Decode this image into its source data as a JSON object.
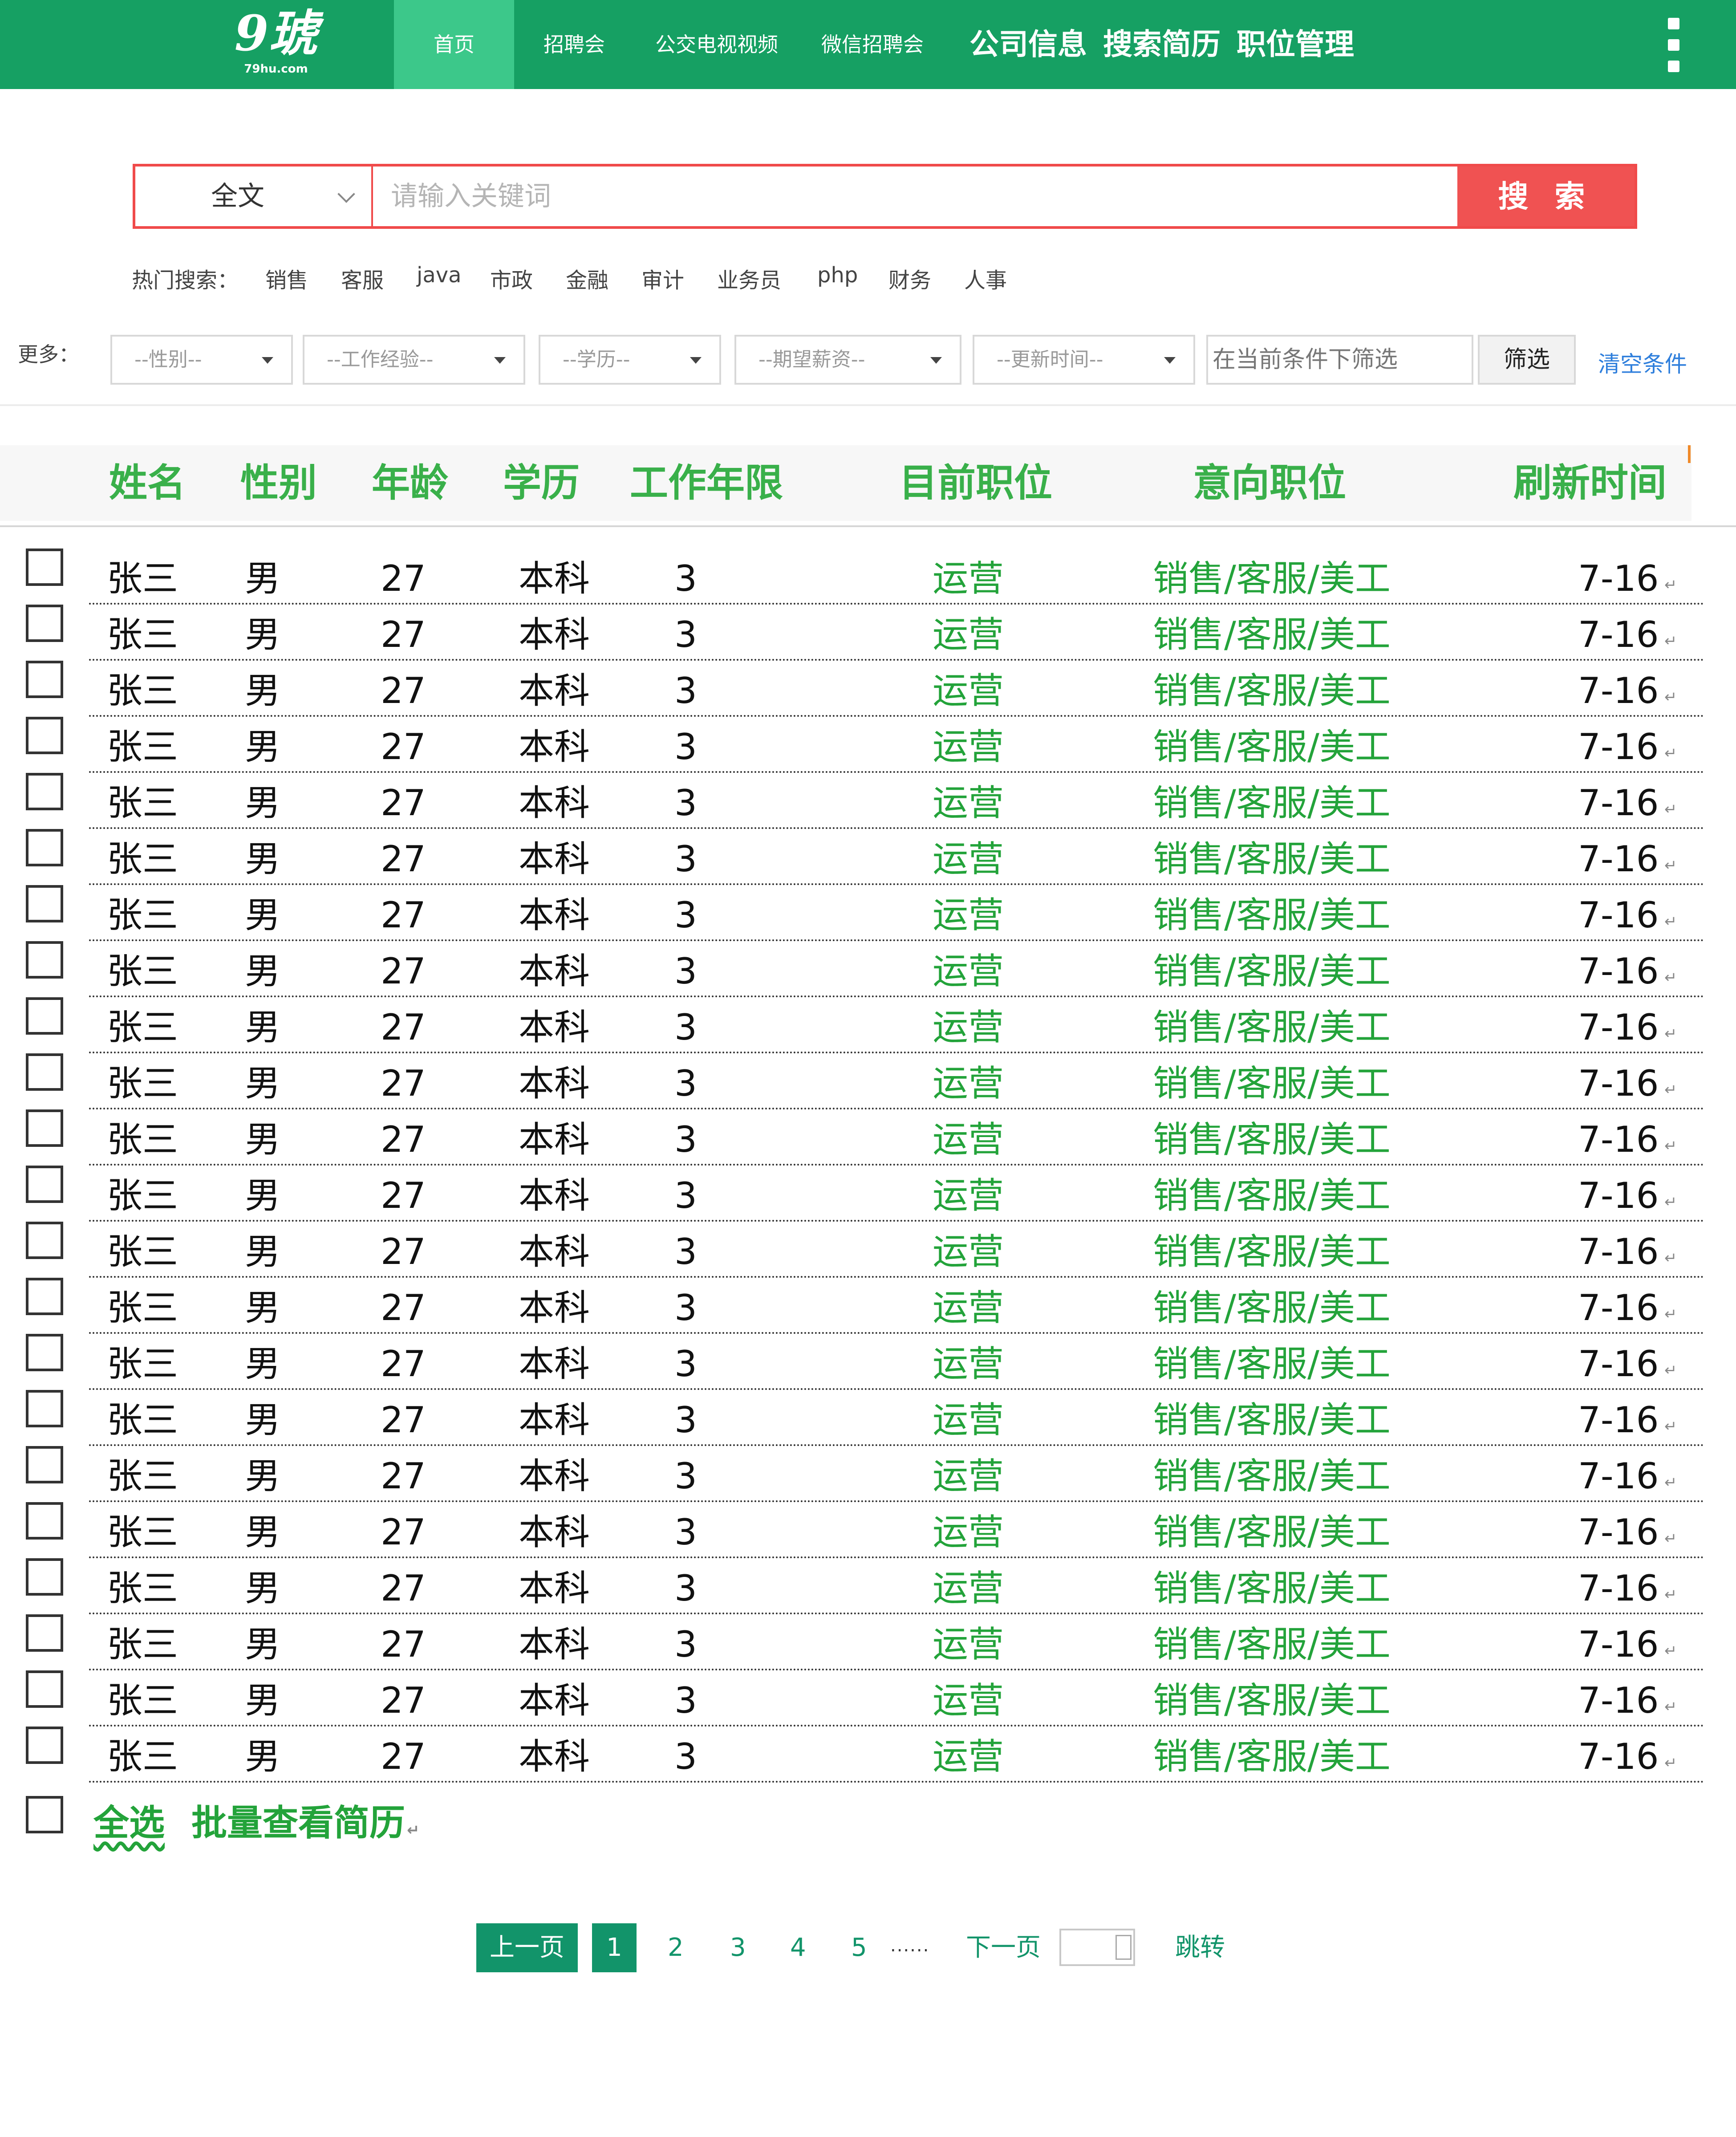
{
  "nav": {
    "logo_main": "9琥",
    "logo_sub": "79hu.com",
    "items": [
      {
        "label": "首页",
        "active": true
      },
      {
        "label": "招聘会",
        "active": false
      },
      {
        "label": "公交电视视频",
        "active": false
      },
      {
        "label": "微信招聘会",
        "active": false
      },
      {
        "label": "公司信息",
        "active": false
      },
      {
        "label": "搜索简历",
        "active": false
      },
      {
        "label": "职位管理",
        "active": false
      }
    ]
  },
  "search": {
    "type_value": "全文",
    "placeholder": "请输入关键词",
    "button_label": "搜 索"
  },
  "hot": {
    "label": "热门搜索：",
    "keywords": [
      "销售",
      "客服",
      "java",
      "市政",
      "金融",
      "审计",
      "业务员",
      "php",
      "财务",
      "人事"
    ]
  },
  "filters": {
    "more_label": "更多：",
    "selects": [
      "--性别--",
      "--工作经验--",
      "--学历--",
      "--期望薪资--",
      "--更新时间--"
    ],
    "input_placeholder": "在当前条件下筛选",
    "button_label": "筛选",
    "clear_label": "清空条件"
  },
  "table": {
    "headers": [
      "姓名",
      "性别",
      "年龄",
      "学历",
      "工作年限",
      "目前职位",
      "意向职位",
      "刷新时间"
    ],
    "rows": [
      {
        "name": "张三",
        "gender": "男",
        "age": "27",
        "edu": "本科",
        "years": "3",
        "current": "运营",
        "target": "销售/客服/美工",
        "refresh": "7-16"
      },
      {
        "name": "张三",
        "gender": "男",
        "age": "27",
        "edu": "本科",
        "years": "3",
        "current": "运营",
        "target": "销售/客服/美工",
        "refresh": "7-16"
      },
      {
        "name": "张三",
        "gender": "男",
        "age": "27",
        "edu": "本科",
        "years": "3",
        "current": "运营",
        "target": "销售/客服/美工",
        "refresh": "7-16"
      },
      {
        "name": "张三",
        "gender": "男",
        "age": "27",
        "edu": "本科",
        "years": "3",
        "current": "运营",
        "target": "销售/客服/美工",
        "refresh": "7-16"
      },
      {
        "name": "张三",
        "gender": "男",
        "age": "27",
        "edu": "本科",
        "years": "3",
        "current": "运营",
        "target": "销售/客服/美工",
        "refresh": "7-16"
      },
      {
        "name": "张三",
        "gender": "男",
        "age": "27",
        "edu": "本科",
        "years": "3",
        "current": "运营",
        "target": "销售/客服/美工",
        "refresh": "7-16"
      },
      {
        "name": "张三",
        "gender": "男",
        "age": "27",
        "edu": "本科",
        "years": "3",
        "current": "运营",
        "target": "销售/客服/美工",
        "refresh": "7-16"
      },
      {
        "name": "张三",
        "gender": "男",
        "age": "27",
        "edu": "本科",
        "years": "3",
        "current": "运营",
        "target": "销售/客服/美工",
        "refresh": "7-16"
      },
      {
        "name": "张三",
        "gender": "男",
        "age": "27",
        "edu": "本科",
        "years": "3",
        "current": "运营",
        "target": "销售/客服/美工",
        "refresh": "7-16"
      },
      {
        "name": "张三",
        "gender": "男",
        "age": "27",
        "edu": "本科",
        "years": "3",
        "current": "运营",
        "target": "销售/客服/美工",
        "refresh": "7-16"
      },
      {
        "name": "张三",
        "gender": "男",
        "age": "27",
        "edu": "本科",
        "years": "3",
        "current": "运营",
        "target": "销售/客服/美工",
        "refresh": "7-16"
      },
      {
        "name": "张三",
        "gender": "男",
        "age": "27",
        "edu": "本科",
        "years": "3",
        "current": "运营",
        "target": "销售/客服/美工",
        "refresh": "7-16"
      },
      {
        "name": "张三",
        "gender": "男",
        "age": "27",
        "edu": "本科",
        "years": "3",
        "current": "运营",
        "target": "销售/客服/美工",
        "refresh": "7-16"
      },
      {
        "name": "张三",
        "gender": "男",
        "age": "27",
        "edu": "本科",
        "years": "3",
        "current": "运营",
        "target": "销售/客服/美工",
        "refresh": "7-16"
      },
      {
        "name": "张三",
        "gender": "男",
        "age": "27",
        "edu": "本科",
        "years": "3",
        "current": "运营",
        "target": "销售/客服/美工",
        "refresh": "7-16"
      },
      {
        "name": "张三",
        "gender": "男",
        "age": "27",
        "edu": "本科",
        "years": "3",
        "current": "运营",
        "target": "销售/客服/美工",
        "refresh": "7-16"
      },
      {
        "name": "张三",
        "gender": "男",
        "age": "27",
        "edu": "本科",
        "years": "3",
        "current": "运营",
        "target": "销售/客服/美工",
        "refresh": "7-16"
      },
      {
        "name": "张三",
        "gender": "男",
        "age": "27",
        "edu": "本科",
        "years": "3",
        "current": "运营",
        "target": "销售/客服/美工",
        "refresh": "7-16"
      },
      {
        "name": "张三",
        "gender": "男",
        "age": "27",
        "edu": "本科",
        "years": "3",
        "current": "运营",
        "target": "销售/客服/美工",
        "refresh": "7-16"
      },
      {
        "name": "张三",
        "gender": "男",
        "age": "27",
        "edu": "本科",
        "years": "3",
        "current": "运营",
        "target": "销售/客服/美工",
        "refresh": "7-16"
      },
      {
        "name": "张三",
        "gender": "男",
        "age": "27",
        "edu": "本科",
        "years": "3",
        "current": "运营",
        "target": "销售/客服/美工",
        "refresh": "7-16"
      },
      {
        "name": "张三",
        "gender": "男",
        "age": "27",
        "edu": "本科",
        "years": "3",
        "current": "运营",
        "target": "销售/客服/美工",
        "refresh": "7-16"
      }
    ],
    "select_all_label": "全选",
    "batch_label": "批量查看简历"
  },
  "pager": {
    "prev_label": "上一页",
    "current": "1",
    "pages": [
      "2",
      "3",
      "4",
      "5"
    ],
    "ellipsis": "......",
    "next_label": "下一页",
    "jump_label": "跳转"
  },
  "colors": {
    "brand_green": "#16a063",
    "accent_red": "#f05252",
    "text_green": "#23a33a",
    "link_blue": "#2f7fdc"
  }
}
